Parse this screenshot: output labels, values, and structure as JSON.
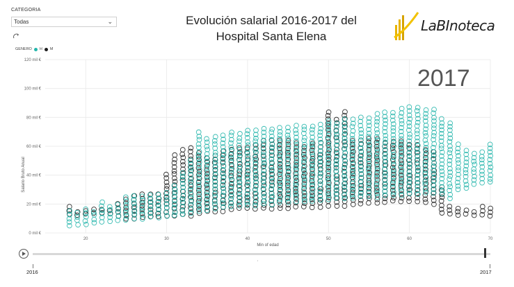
{
  "filter": {
    "label": "CATEGORIA",
    "value": "Todas"
  },
  "legend": {
    "title": "GENERO",
    "items": [
      {
        "label": "H",
        "color": "#22b5ab"
      },
      {
        "label": "M",
        "color": "#1d1d1d"
      }
    ]
  },
  "title_line1": "Evolución salarial 2016-2017 del",
  "title_line2": "Hospital Santa Elena",
  "logo_text": "LaBInoteca",
  "year_display": "2017",
  "slider": {
    "start": "2016",
    "end": "2017",
    "mark": "'"
  },
  "chart_data": {
    "type": "scatter",
    "xlabel": "Min of edad",
    "ylabel": "Salario Bruto Anual",
    "xlim": [
      15,
      70
    ],
    "ylim": [
      0,
      120
    ],
    "x_ticks": [
      20,
      30,
      40,
      50,
      60,
      70
    ],
    "y_ticks": [
      0,
      20,
      40,
      60,
      80,
      100,
      120
    ],
    "y_tick_labels": [
      "0 mil €",
      "20 mil €",
      "40 mil €",
      "60 mil €",
      "80 mil €",
      "100 mil €",
      "120 mil €"
    ],
    "grid": true,
    "series": [
      {
        "name": "H",
        "color": "#22b5ab",
        "ranges": [
          [
            18,
            5,
            17
          ],
          [
            19,
            6,
            16
          ],
          [
            20,
            6,
            17
          ],
          [
            21,
            7,
            17
          ],
          [
            22,
            8,
            21
          ],
          [
            23,
            8,
            19
          ],
          [
            24,
            9,
            21
          ],
          [
            25,
            9,
            26
          ],
          [
            26,
            10,
            27
          ],
          [
            27,
            10,
            28
          ],
          [
            28,
            11,
            28
          ],
          [
            29,
            11,
            28
          ],
          [
            30,
            12,
            29
          ],
          [
            31,
            12,
            34
          ],
          [
            32,
            13,
            44
          ],
          [
            33,
            14,
            52
          ],
          [
            34,
            15,
            71
          ],
          [
            35,
            16,
            68
          ],
          [
            36,
            17,
            69
          ],
          [
            37,
            18,
            70
          ],
          [
            38,
            18,
            71
          ],
          [
            39,
            19,
            71
          ],
          [
            40,
            19,
            72
          ],
          [
            41,
            19,
            72
          ],
          [
            42,
            20,
            73
          ],
          [
            43,
            20,
            74
          ],
          [
            44,
            21,
            74
          ],
          [
            45,
            21,
            74
          ],
          [
            46,
            22,
            75
          ],
          [
            47,
            22,
            75
          ],
          [
            48,
            22,
            76
          ],
          [
            49,
            23,
            76
          ],
          [
            50,
            23,
            78
          ],
          [
            51,
            24,
            78
          ],
          [
            52,
            24,
            80
          ],
          [
            53,
            24,
            80
          ],
          [
            54,
            25,
            82
          ],
          [
            55,
            25,
            82
          ],
          [
            56,
            25,
            83
          ],
          [
            57,
            26,
            84
          ],
          [
            58,
            26,
            84
          ],
          [
            59,
            26,
            86
          ],
          [
            60,
            27,
            87
          ],
          [
            61,
            27,
            88
          ],
          [
            62,
            28,
            87
          ],
          [
            63,
            28,
            86
          ],
          [
            64,
            27,
            80
          ],
          [
            65,
            24,
            76
          ],
          [
            66,
            30,
            62
          ],
          [
            67,
            31,
            58
          ],
          [
            68,
            34,
            56
          ],
          [
            69,
            35,
            58
          ],
          [
            70,
            35,
            62
          ]
        ]
      },
      {
        "name": "M",
        "color": "#1d1d1d",
        "ranges": [
          [
            18,
            13,
            20
          ],
          [
            19,
            12,
            15
          ],
          [
            20,
            13,
            16
          ],
          [
            21,
            14,
            18
          ],
          [
            22,
            14,
            17
          ],
          [
            23,
            13,
            18
          ],
          [
            24,
            12,
            20
          ],
          [
            25,
            10,
            24
          ],
          [
            26,
            10,
            26
          ],
          [
            27,
            11,
            27
          ],
          [
            28,
            11,
            27
          ],
          [
            29,
            11,
            29
          ],
          [
            30,
            12,
            43
          ],
          [
            31,
            12,
            55
          ],
          [
            32,
            13,
            58
          ],
          [
            33,
            12,
            60
          ],
          [
            34,
            14,
            56
          ],
          [
            35,
            15,
            54
          ],
          [
            36,
            15,
            56
          ],
          [
            37,
            15,
            58
          ],
          [
            38,
            16,
            60
          ],
          [
            39,
            17,
            61
          ],
          [
            40,
            17,
            61
          ],
          [
            41,
            17,
            62
          ],
          [
            42,
            17,
            64
          ],
          [
            43,
            17,
            66
          ],
          [
            44,
            17,
            64
          ],
          [
            45,
            17,
            66
          ],
          [
            46,
            18,
            63
          ],
          [
            47,
            18,
            62
          ],
          [
            48,
            18,
            63
          ],
          [
            49,
            18,
            64
          ],
          [
            50,
            19,
            84
          ],
          [
            51,
            19,
            80
          ],
          [
            52,
            19,
            84
          ],
          [
            53,
            20,
            66
          ],
          [
            54,
            20,
            66
          ],
          [
            55,
            21,
            66
          ],
          [
            56,
            21,
            66
          ],
          [
            57,
            21,
            64
          ],
          [
            58,
            22,
            66
          ],
          [
            59,
            22,
            64
          ],
          [
            60,
            22,
            62
          ],
          [
            61,
            22,
            62
          ],
          [
            62,
            21,
            60
          ],
          [
            63,
            20,
            58
          ],
          [
            64,
            14,
            34
          ],
          [
            65,
            13,
            20
          ],
          [
            66,
            12,
            18
          ],
          [
            67,
            13,
            18
          ],
          [
            68,
            12,
            16
          ],
          [
            69,
            13,
            19
          ],
          [
            70,
            12,
            18
          ]
        ]
      }
    ]
  }
}
